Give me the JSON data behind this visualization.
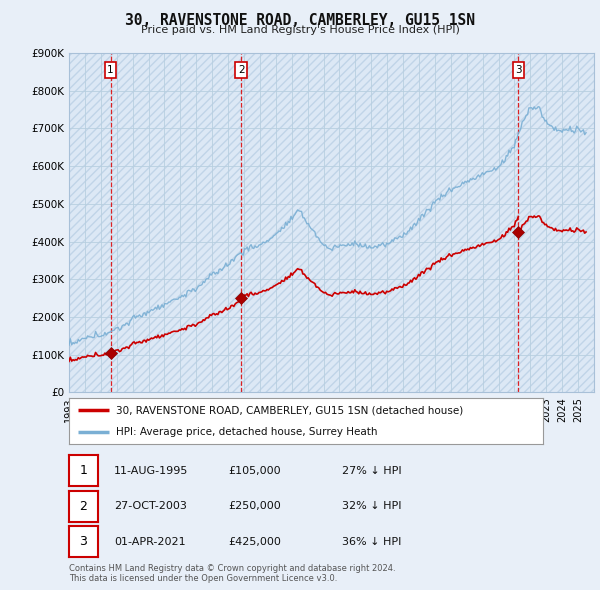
{
  "title": "30, RAVENSTONE ROAD, CAMBERLEY, GU15 1SN",
  "subtitle": "Price paid vs. HM Land Registry's House Price Index (HPI)",
  "bg_color": "#e8eff8",
  "plot_bg_color": "#dce8f5",
  "grid_color": "#b8cfe0",
  "ylim": [
    0,
    900000
  ],
  "yticks": [
    0,
    100000,
    200000,
    300000,
    400000,
    500000,
    600000,
    700000,
    800000,
    900000
  ],
  "ytick_labels": [
    "£0",
    "£100K",
    "£200K",
    "£300K",
    "£400K",
    "£500K",
    "£600K",
    "£700K",
    "£800K",
    "£900K"
  ],
  "xlim_start": 1993.0,
  "xlim_end": 2026.0,
  "sale_dates": [
    1995.61,
    2003.82,
    2021.25
  ],
  "sale_prices": [
    105000,
    250000,
    425000
  ],
  "sale_labels": [
    "1",
    "2",
    "3"
  ],
  "sale_info": [
    {
      "num": "1",
      "date": "11-AUG-1995",
      "price": "£105,000",
      "hpi": "27% ↓ HPI"
    },
    {
      "num": "2",
      "date": "27-OCT-2003",
      "price": "£250,000",
      "hpi": "32% ↓ HPI"
    },
    {
      "num": "3",
      "date": "01-APR-2021",
      "price": "£425,000",
      "hpi": "36% ↓ HPI"
    }
  ],
  "property_line_color": "#cc0000",
  "hpi_line_color": "#7aafd4",
  "legend_property": "30, RAVENSTONE ROAD, CAMBERLEY, GU15 1SN (detached house)",
  "legend_hpi": "HPI: Average price, detached house, Surrey Heath",
  "footer": "Contains HM Land Registry data © Crown copyright and database right 2024.\nThis data is licensed under the Open Government Licence v3.0.",
  "xtick_years": [
    1993,
    1994,
    1995,
    1996,
    1997,
    1998,
    1999,
    2000,
    2001,
    2002,
    2003,
    2004,
    2005,
    2006,
    2007,
    2008,
    2009,
    2010,
    2011,
    2012,
    2013,
    2014,
    2015,
    2016,
    2017,
    2018,
    2019,
    2020,
    2021,
    2022,
    2023,
    2024,
    2025
  ]
}
